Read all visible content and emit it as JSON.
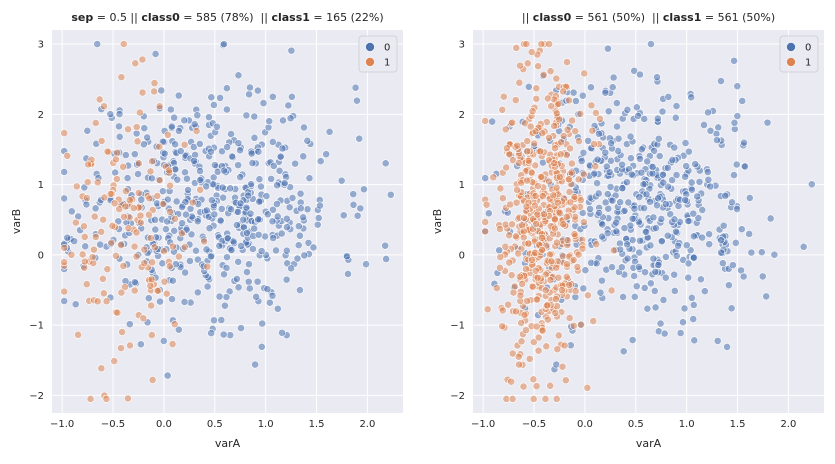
{
  "colors": {
    "class0": "#4c72b0",
    "class1": "#dd8452",
    "panel_bg": "#eaeaf2",
    "grid": "#ffffff"
  },
  "chart_data": [
    {
      "type": "scatter",
      "title_parts": [
        {
          "text": "sep",
          "bold": true
        },
        {
          "text": " = 0.5 || ",
          "bold": false
        },
        {
          "text": "class0",
          "bold": true
        },
        {
          "text": " = 585 (78%)  || ",
          "bold": false
        },
        {
          "text": "class1",
          "bold": true
        },
        {
          "text": " = 165 (22%)",
          "bold": false
        }
      ],
      "xlabel": "varA",
      "ylabel": "varB",
      "xlim": [
        -1.1,
        2.35
      ],
      "ylim": [
        -2.25,
        3.2
      ],
      "xticks": [
        -1.0,
        -0.5,
        0.0,
        0.5,
        1.0,
        1.5,
        2.0
      ],
      "xtick_labels": [
        "−1.0",
        "−0.5",
        "0.0",
        "0.5",
        "1.0",
        "1.5",
        "2.0"
      ],
      "yticks": [
        -2,
        -1,
        0,
        1,
        2,
        3
      ],
      "ytick_labels": [
        "−2",
        "−1",
        "0",
        "1",
        "2",
        "3"
      ],
      "grid": true,
      "legend": {
        "position": "top-right",
        "entries": [
          "0",
          "1"
        ]
      },
      "series": [
        {
          "name": "0",
          "color": "#4c72b0",
          "count": 585,
          "center": [
            0.45,
            0.75
          ],
          "spread": [
            0.62,
            0.82
          ],
          "seed": 11
        },
        {
          "name": "1",
          "color": "#dd8452",
          "count": 165,
          "center": [
            -0.38,
            0.35
          ],
          "spread": [
            0.32,
            0.95
          ],
          "seed": 23
        }
      ]
    },
    {
      "type": "scatter",
      "title_parts": [
        {
          "text": "|| ",
          "bold": false
        },
        {
          "text": "class0",
          "bold": true
        },
        {
          "text": " = 561 (50%)  || ",
          "bold": false
        },
        {
          "text": "class1",
          "bold": true
        },
        {
          "text": " = 561 (50%)",
          "bold": false
        }
      ],
      "xlabel": "varA",
      "ylabel": "varB",
      "xlim": [
        -1.1,
        2.35
      ],
      "ylim": [
        -2.25,
        3.2
      ],
      "xticks": [
        -1.0,
        -0.5,
        0.0,
        0.5,
        1.0,
        1.5,
        2.0
      ],
      "xtick_labels": [
        "−1.0",
        "−0.5",
        "0.0",
        "0.5",
        "1.0",
        "1.5",
        "2.0"
      ],
      "yticks": [
        -2,
        -1,
        0,
        1,
        2,
        3
      ],
      "ytick_labels": [
        "−2",
        "−1",
        "0",
        "1",
        "2",
        "3"
      ],
      "grid": true,
      "legend": {
        "position": "top-right",
        "entries": [
          "0",
          "1"
        ]
      },
      "series": [
        {
          "name": "0",
          "color": "#4c72b0",
          "count": 561,
          "center": [
            0.5,
            0.75
          ],
          "spread": [
            0.6,
            0.82
          ],
          "seed": 31
        },
        {
          "name": "1",
          "color": "#dd8452",
          "count": 561,
          "center": [
            -0.42,
            0.4
          ],
          "spread": [
            0.22,
            1.0
          ],
          "seed": 47
        }
      ]
    }
  ]
}
